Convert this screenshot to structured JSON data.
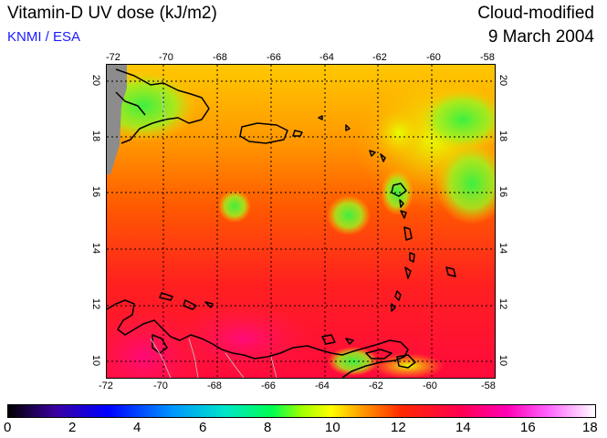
{
  "header": {
    "title": "Vitamin-D UV dose (kJ/m2)",
    "org": "KNMI / ESA",
    "status": "Cloud-modified",
    "date": "9 March 2004"
  },
  "map": {
    "lon_ticks": [
      "-72",
      "-70",
      "-68",
      "-66",
      "-64",
      "-62",
      "-60",
      "-58"
    ],
    "lat_ticks": [
      "20",
      "18",
      "16",
      "14",
      "12",
      "10"
    ],
    "lon_range": [
      -72,
      -58
    ],
    "lat_range": [
      9.5,
      20.5
    ]
  },
  "colorbar": {
    "labels": [
      "0",
      "2",
      "4",
      "6",
      "8",
      "10",
      "12",
      "14",
      "16",
      "18"
    ],
    "range": [
      0,
      18
    ],
    "colors": [
      "#000000",
      "#3b00a0",
      "#0000ff",
      "#0096ff",
      "#00e6c8",
      "#00ff50",
      "#a0ff00",
      "#ffff00",
      "#ffa000",
      "#ff2800",
      "#ff0050",
      "#ff00b4",
      "#ff64ff",
      "#ffffff"
    ]
  }
}
